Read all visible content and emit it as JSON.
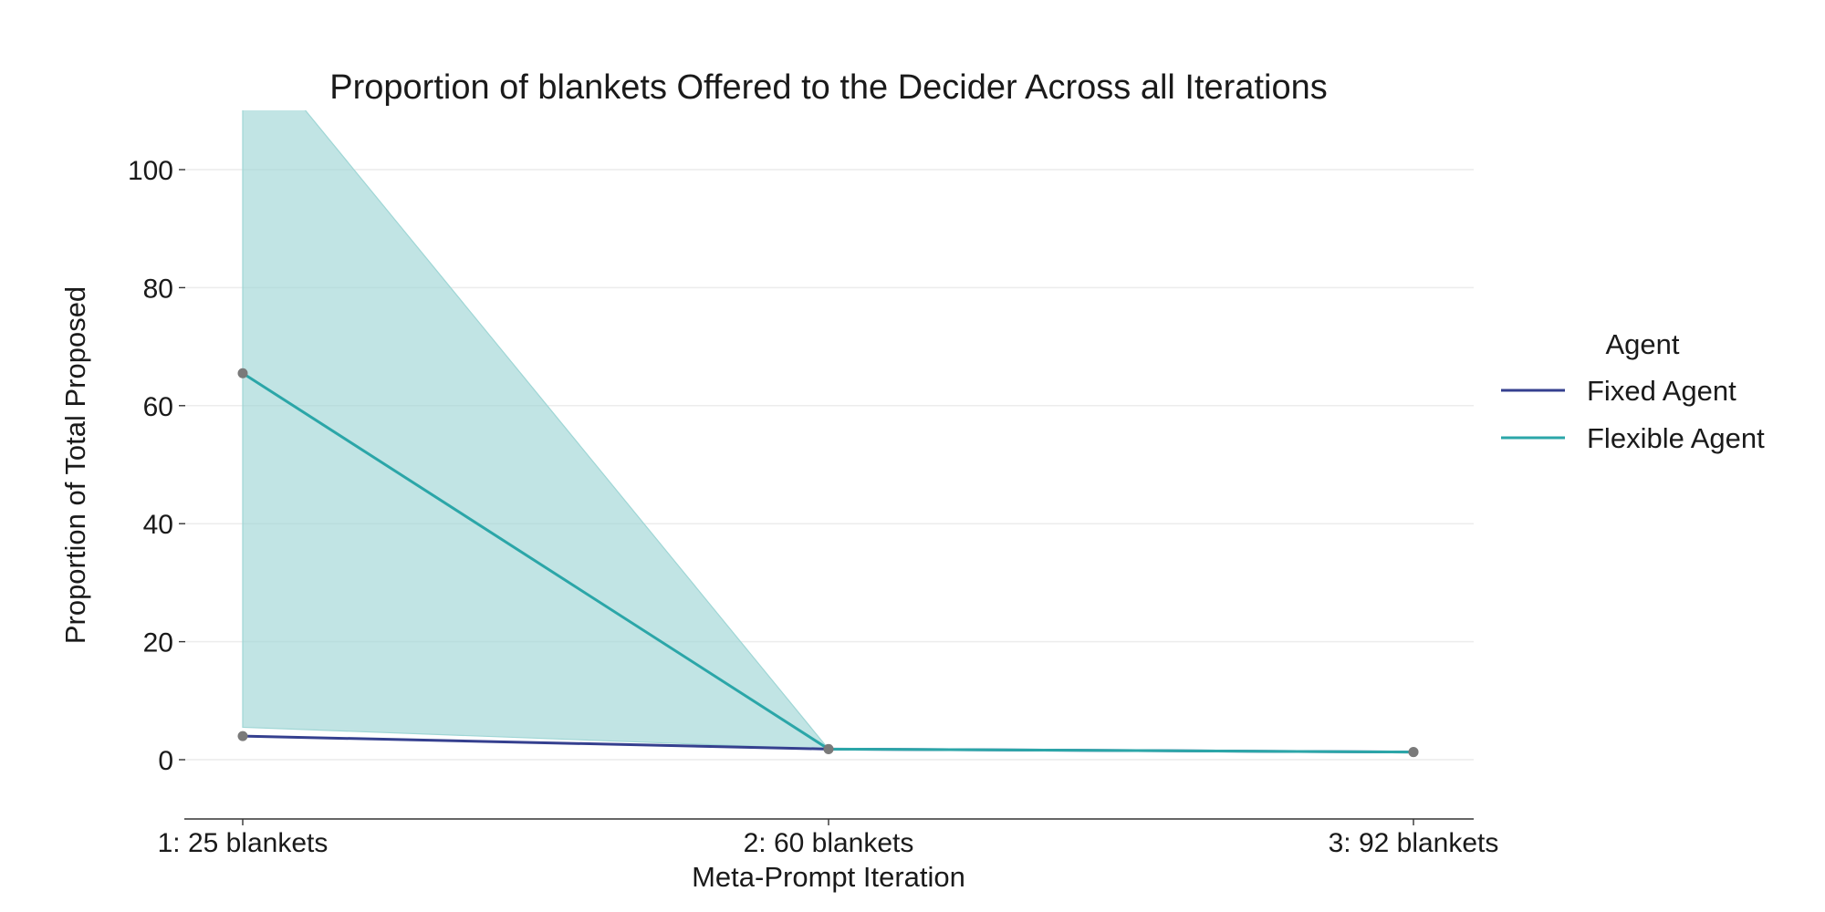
{
  "chart_data": {
    "type": "line",
    "title": "Proportion of blankets Offered to the Decider Across all Iterations",
    "xlabel": "Meta-Prompt Iteration",
    "ylabel": "Proportion of Total Proposed",
    "categories": [
      "1: 25 blankets",
      "2: 60 blankets",
      "3: 92 blankets"
    ],
    "ylim": [
      -10,
      110
    ],
    "yticks": [
      0,
      20,
      40,
      60,
      80,
      100
    ],
    "grid": "horizontal",
    "legend": {
      "title": "Agent",
      "placement": "right"
    },
    "series": [
      {
        "name": "Fixed Agent",
        "color": "#35408f",
        "values": [
          4.0,
          1.8,
          1.3
        ]
      },
      {
        "name": "Flexible Agent",
        "color": "#2ba6a8",
        "values": [
          65.5,
          1.8,
          1.3
        ],
        "band_lower": [
          5.5,
          1.8,
          1.3
        ],
        "band_upper": [
          123,
          1.8,
          1.3
        ],
        "band_color": "#9fd6d5"
      }
    ],
    "marker_color": "#7a7a7a"
  }
}
